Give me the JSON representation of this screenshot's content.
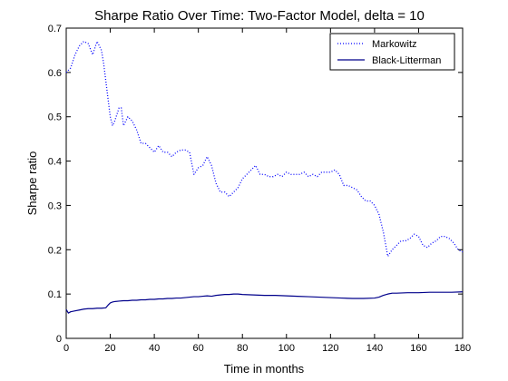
{
  "chart_data": {
    "type": "line",
    "title": "Sharpe Ratio Over Time: Two-Factor Model, delta = 10",
    "xlabel": "Time in months",
    "ylabel": "Sharpe ratio",
    "xlim": [
      0,
      180
    ],
    "ylim": [
      0,
      0.7
    ],
    "xticks": [
      0,
      20,
      40,
      60,
      80,
      100,
      120,
      140,
      160,
      180
    ],
    "yticks": [
      0,
      0.1,
      0.2,
      0.3,
      0.4,
      0.5,
      0.6,
      0.7
    ],
    "xtick_labels": [
      "0",
      "20",
      "40",
      "60",
      "80",
      "100",
      "120",
      "140",
      "160",
      "180"
    ],
    "ytick_labels": [
      "0",
      "0.1",
      "0.2",
      "0.3",
      "0.4",
      "0.5",
      "0.6",
      "0.7"
    ],
    "grid": false,
    "legend_position": "top-right",
    "series": [
      {
        "name": "Markowitz",
        "style": "dotted",
        "color": "#0000ff",
        "x": [
          0,
          2,
          4,
          6,
          8,
          10,
          12,
          14,
          16,
          17,
          18,
          20,
          21,
          22,
          24,
          25,
          26,
          28,
          30,
          32,
          34,
          36,
          38,
          40,
          42,
          44,
          46,
          48,
          50,
          52,
          54,
          56,
          58,
          60,
          62,
          64,
          66,
          68,
          70,
          72,
          74,
          76,
          78,
          80,
          82,
          84,
          86,
          88,
          90,
          92,
          94,
          96,
          98,
          100,
          102,
          104,
          106,
          108,
          110,
          112,
          114,
          116,
          118,
          120,
          122,
          124,
          126,
          128,
          130,
          132,
          134,
          136,
          138,
          140,
          142,
          144,
          146,
          148,
          150,
          152,
          154,
          156,
          158,
          160,
          162,
          164,
          166,
          168,
          170,
          172,
          174,
          176,
          178,
          180
        ],
        "y": [
          0.6,
          0.61,
          0.64,
          0.66,
          0.67,
          0.665,
          0.64,
          0.67,
          0.65,
          0.62,
          0.58,
          0.5,
          0.48,
          0.49,
          0.52,
          0.52,
          0.48,
          0.5,
          0.49,
          0.47,
          0.44,
          0.44,
          0.43,
          0.42,
          0.435,
          0.42,
          0.42,
          0.41,
          0.42,
          0.425,
          0.425,
          0.42,
          0.37,
          0.385,
          0.39,
          0.41,
          0.39,
          0.35,
          0.33,
          0.33,
          0.32,
          0.33,
          0.34,
          0.36,
          0.37,
          0.38,
          0.39,
          0.37,
          0.37,
          0.365,
          0.365,
          0.37,
          0.365,
          0.375,
          0.37,
          0.37,
          0.37,
          0.375,
          0.365,
          0.37,
          0.365,
          0.375,
          0.375,
          0.375,
          0.38,
          0.37,
          0.345,
          0.345,
          0.34,
          0.335,
          0.32,
          0.31,
          0.31,
          0.3,
          0.28,
          0.24,
          0.185,
          0.2,
          0.21,
          0.22,
          0.22,
          0.225,
          0.235,
          0.23,
          0.21,
          0.205,
          0.215,
          0.22,
          0.23,
          0.23,
          0.225,
          0.215,
          0.2,
          0.195
        ]
      },
      {
        "name": "Black-Litterman",
        "style": "solid",
        "color": "#00008b",
        "x": [
          0,
          1,
          2,
          4,
          6,
          8,
          10,
          12,
          14,
          16,
          18,
          19,
          20,
          21,
          22,
          24,
          26,
          28,
          30,
          32,
          34,
          36,
          38,
          40,
          42,
          44,
          46,
          48,
          50,
          52,
          54,
          56,
          58,
          60,
          62,
          64,
          66,
          68,
          70,
          72,
          74,
          76,
          78,
          80,
          85,
          90,
          95,
          100,
          105,
          110,
          115,
          120,
          125,
          130,
          135,
          140,
          142,
          144,
          146,
          148,
          150,
          155,
          160,
          165,
          170,
          175,
          180
        ],
        "y": [
          0.065,
          0.057,
          0.06,
          0.062,
          0.064,
          0.066,
          0.067,
          0.067,
          0.068,
          0.068,
          0.069,
          0.075,
          0.08,
          0.082,
          0.083,
          0.084,
          0.085,
          0.085,
          0.086,
          0.086,
          0.087,
          0.087,
          0.088,
          0.088,
          0.089,
          0.089,
          0.09,
          0.09,
          0.091,
          0.091,
          0.092,
          0.093,
          0.094,
          0.094,
          0.095,
          0.096,
          0.095,
          0.097,
          0.098,
          0.099,
          0.099,
          0.1,
          0.1,
          0.099,
          0.098,
          0.097,
          0.097,
          0.096,
          0.095,
          0.094,
          0.093,
          0.092,
          0.091,
          0.09,
          0.09,
          0.091,
          0.093,
          0.097,
          0.1,
          0.102,
          0.102,
          0.103,
          0.103,
          0.104,
          0.104,
          0.104,
          0.105
        ]
      }
    ]
  }
}
